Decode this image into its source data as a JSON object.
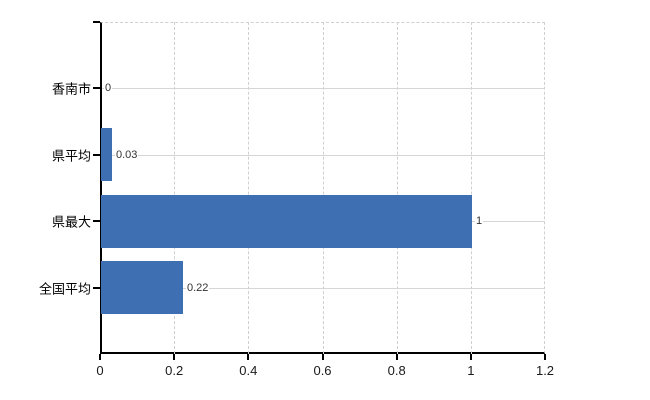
{
  "chart_data": {
    "type": "bar",
    "orientation": "horizontal",
    "title": "",
    "xlabel": "",
    "ylabel": "",
    "categories": [
      "香南市",
      "県平均",
      "県最大",
      "全国平均"
    ],
    "values": [
      0,
      0.03,
      1,
      0.22
    ],
    "value_labels": [
      "0",
      "0.03",
      "1",
      "0.22"
    ],
    "xlim": [
      0,
      1.2
    ],
    "xticks": [
      0,
      0.2,
      0.4,
      0.6,
      0.8,
      1,
      1.2
    ],
    "xtick_labels": [
      "0",
      "0.2",
      "0.4",
      "0.6",
      "0.8",
      "1",
      "1.2"
    ],
    "grid": true,
    "legend": false,
    "bar_color": "#3e6fb2",
    "axis_color": "#000000",
    "gridline_color": "#d6d6d6"
  }
}
